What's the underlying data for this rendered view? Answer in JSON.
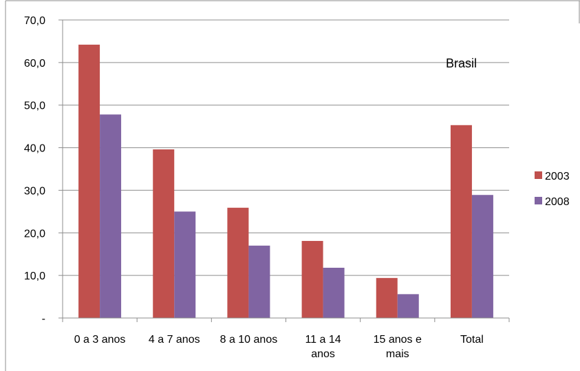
{
  "chart_data": {
    "type": "bar",
    "title": "",
    "xlabel": "",
    "ylabel": "",
    "ylim": [
      0,
      70
    ],
    "yticks": [
      "-",
      "10,0",
      "20,0",
      "30,0",
      "40,0",
      "50,0",
      "60,0",
      "70,0"
    ],
    "grid": true,
    "legend_position": "right",
    "annotation": "Brasil",
    "categories": [
      [
        "0 a 3 anos"
      ],
      [
        "4 a 7 anos"
      ],
      [
        "8 a 10 anos"
      ],
      [
        "11 a 14",
        "anos"
      ],
      [
        "15 anos e",
        "mais"
      ],
      [
        "Total"
      ]
    ],
    "series": [
      {
        "name": "2003",
        "color": "#c0504d",
        "values": [
          64.2,
          39.6,
          25.9,
          18.1,
          9.4,
          45.3
        ]
      },
      {
        "name": "2008",
        "color": "#8064a2",
        "values": [
          47.8,
          25.0,
          17.0,
          11.8,
          5.6,
          28.9
        ]
      }
    ]
  }
}
